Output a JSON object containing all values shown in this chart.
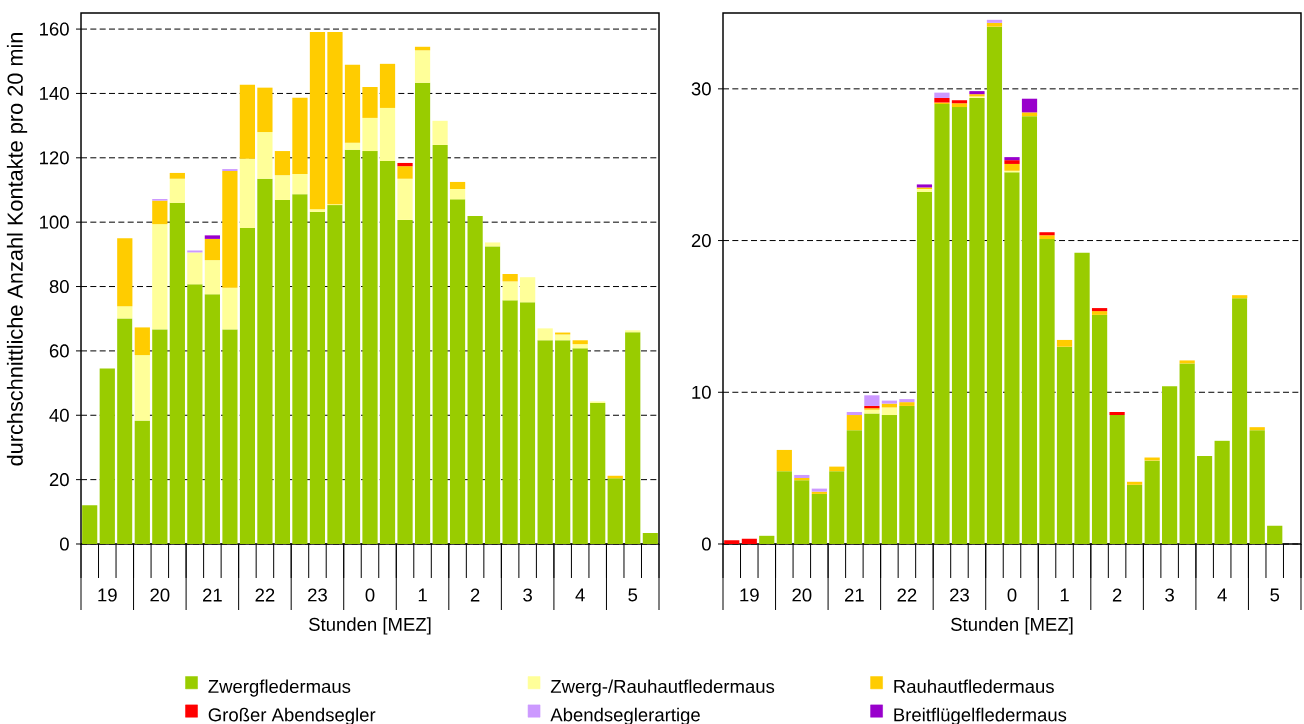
{
  "chart_data": [
    {
      "type": "bar",
      "stacked": true,
      "ylabel": "durchschnittliche Anzahl Kontakte pro 20 min",
      "xlabel": "Stunden [MEZ]",
      "categories": [
        null,
        "19",
        null,
        null,
        "20",
        null,
        null,
        "21",
        null,
        null,
        "22",
        null,
        null,
        "23",
        null,
        null,
        "0",
        null,
        null,
        "1",
        null,
        null,
        "2",
        null,
        null,
        "3",
        null,
        null,
        "4",
        null,
        null,
        "5",
        null
      ],
      "ylim": [
        0,
        165
      ],
      "yticks": [
        0,
        20,
        40,
        60,
        80,
        100,
        120,
        140,
        160
      ],
      "grid": "y",
      "legend": "bottom",
      "series": [
        {
          "name": "Zwergfledermaus",
          "color": "#99cc00",
          "values": [
            12.0,
            54.5,
            70.1,
            38.4,
            66.7,
            106.0,
            80.7,
            77.6,
            66.7,
            98.2,
            113.5,
            106.9,
            108.7,
            103.2,
            105.3,
            122.5,
            122.1,
            119.0,
            100.7,
            143.3,
            124.0,
            107.1,
            101.9,
            92.5,
            75.7,
            75.1,
            63.3,
            63.3,
            60.8,
            43.8,
            20.4,
            65.8,
            3.4
          ]
        },
        {
          "name": "Zwerg-/Rauhautfledermaus",
          "color": "#ffff99",
          "values": [
            null,
            null,
            3.8,
            20.3,
            32.7,
            7.5,
            9.9,
            10.6,
            12.9,
            21.5,
            14.5,
            7.7,
            6.3,
            0.8,
            0.3,
            2.2,
            10.3,
            16.5,
            12.8,
            10.1,
            7.5,
            3.2,
            null,
            1.2,
            5.9,
            7.8,
            3.7,
            1.8,
            1.3,
            0.5,
            null,
            0.6,
            null
          ]
        },
        {
          "name": "Rauhautfledermaus",
          "color": "#ffcc00",
          "values": [
            null,
            null,
            21.1,
            8.6,
            7.3,
            1.8,
            null,
            6.6,
            36.3,
            23.0,
            13.8,
            7.5,
            23.7,
            55.1,
            53.5,
            24.2,
            9.6,
            13.7,
            3.9,
            1.1,
            null,
            2.2,
            null,
            null,
            2.3,
            null,
            null,
            0.6,
            1.2,
            null,
            0.8,
            null,
            null
          ]
        },
        {
          "name": "Großer Abendsegler",
          "color": "#ff0000",
          "values": [
            null,
            null,
            null,
            null,
            null,
            null,
            null,
            null,
            null,
            null,
            null,
            null,
            null,
            null,
            null,
            null,
            null,
            null,
            1.0,
            null,
            null,
            null,
            null,
            null,
            null,
            null,
            null,
            null,
            null,
            null,
            null,
            null,
            null
          ]
        },
        {
          "name": "Abendseglerartige",
          "color": "#cc99ff",
          "values": [
            null,
            null,
            null,
            null,
            0.5,
            null,
            0.6,
            null,
            0.6,
            null,
            null,
            null,
            null,
            null,
            null,
            null,
            null,
            null,
            null,
            null,
            null,
            null,
            null,
            null,
            null,
            null,
            null,
            null,
            null,
            null,
            null,
            null,
            null
          ]
        },
        {
          "name": "Breitflügelfledermaus",
          "color": "#9900cc",
          "values": [
            null,
            null,
            null,
            null,
            null,
            null,
            null,
            1.1,
            null,
            null,
            null,
            null,
            null,
            null,
            null,
            null,
            null,
            null,
            null,
            null,
            null,
            null,
            null,
            null,
            null,
            null,
            null,
            null,
            null,
            null,
            null,
            null,
            null
          ]
        }
      ]
    },
    {
      "type": "bar",
      "stacked": true,
      "xlabel": "Stunden [MEZ]",
      "categories": [
        null,
        "19",
        null,
        null,
        "20",
        null,
        null,
        "21",
        null,
        null,
        "22",
        null,
        null,
        "23",
        null,
        null,
        "0",
        null,
        null,
        "1",
        null,
        null,
        "2",
        null,
        null,
        "3",
        null,
        null,
        "4",
        null,
        null,
        "5",
        null
      ],
      "ylim": [
        0,
        35
      ],
      "yticks": [
        0,
        10,
        20,
        30
      ],
      "grid": "y",
      "series": [
        {
          "color": "#99cc00",
          "values": [
            null,
            null,
            0.55,
            4.8,
            4.2,
            3.3,
            4.8,
            7.5,
            8.6,
            8.5,
            9.1,
            23.2,
            29.0,
            28.8,
            29.4,
            34.1,
            24.5,
            28.2,
            20.1,
            13.0,
            19.2,
            15.1,
            8.5,
            3.9,
            5.5,
            10.4,
            11.9,
            5.8,
            6.8,
            16.2,
            7.5,
            1.2,
            null
          ]
        },
        {
          "color": "#ffff99",
          "values": [
            null,
            null,
            null,
            null,
            null,
            null,
            null,
            null,
            0.25,
            0.5,
            null,
            0.2,
            null,
            null,
            0.1,
            null,
            0.1,
            null,
            null,
            null,
            null,
            null,
            null,
            null,
            null,
            null,
            null,
            null,
            null,
            null,
            null,
            null,
            null
          ]
        },
        {
          "color": "#ffcc00",
          "values": [
            null,
            null,
            null,
            1.4,
            0.15,
            0.15,
            0.3,
            1.0,
            0.1,
            0.25,
            0.25,
            0.1,
            0.1,
            0.25,
            0.15,
            0.25,
            0.45,
            0.25,
            0.25,
            0.45,
            null,
            0.25,
            null,
            0.2,
            0.2,
            null,
            0.2,
            null,
            null,
            0.2,
            0.2,
            null,
            null
          ]
        },
        {
          "color": "#ff0000",
          "values": [
            0.25,
            0.35,
            null,
            null,
            null,
            null,
            null,
            null,
            0.15,
            null,
            null,
            null,
            0.3,
            0.2,
            null,
            null,
            0.25,
            null,
            0.2,
            null,
            null,
            0.2,
            0.2,
            null,
            null,
            null,
            null,
            null,
            null,
            null,
            null,
            null,
            null
          ]
        },
        {
          "color": "#cc99ff",
          "values": [
            null,
            null,
            null,
            null,
            0.2,
            0.2,
            null,
            0.2,
            0.7,
            0.2,
            0.2,
            null,
            0.35,
            null,
            null,
            0.2,
            null,
            null,
            null,
            null,
            null,
            null,
            null,
            null,
            null,
            null,
            null,
            null,
            null,
            null,
            null,
            null,
            null
          ]
        },
        {
          "color": "#9900cc",
          "values": [
            null,
            null,
            null,
            null,
            null,
            null,
            null,
            null,
            null,
            null,
            null,
            0.2,
            null,
            null,
            0.2,
            null,
            0.2,
            0.9,
            null,
            null,
            null,
            null,
            null,
            null,
            null,
            null,
            null,
            null,
            null,
            null,
            null,
            null,
            null
          ]
        }
      ]
    }
  ]
}
